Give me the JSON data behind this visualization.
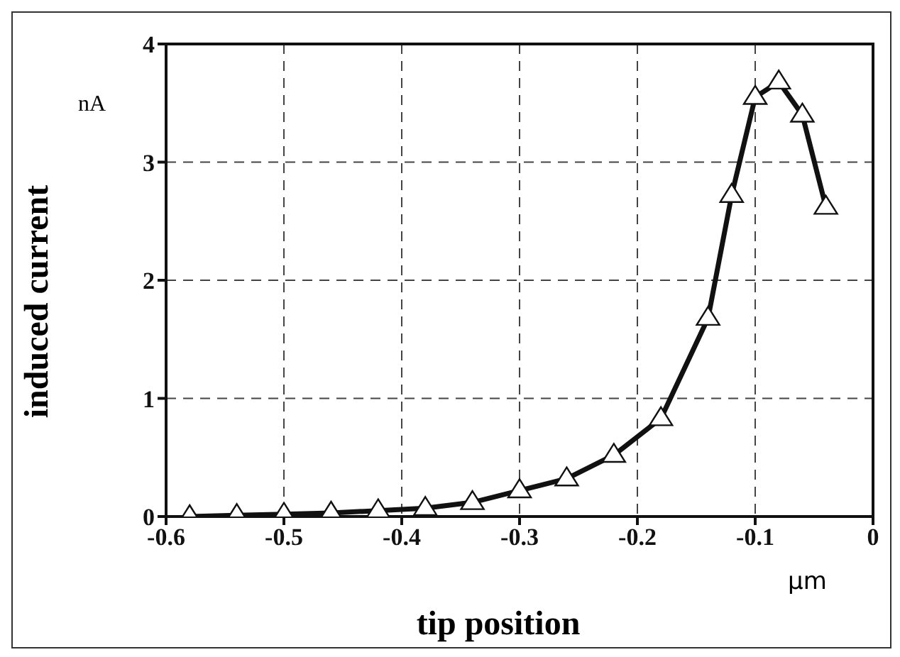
{
  "chart_data": {
    "type": "line",
    "xlabel": "tip position",
    "ylabel": "induced current",
    "annotations": [
      "nA",
      "µm"
    ],
    "x": [
      -0.58,
      -0.54,
      -0.5,
      -0.46,
      -0.42,
      -0.38,
      -0.34,
      -0.3,
      -0.26,
      -0.22,
      -0.18,
      -0.14,
      -0.12,
      -0.1,
      -0.08,
      -0.06,
      -0.04
    ],
    "series": [
      {
        "color": "#111111",
        "values": [
          0.0,
          0.01,
          0.02,
          0.03,
          0.05,
          0.07,
          0.12,
          0.22,
          0.32,
          0.52,
          0.83,
          1.68,
          2.72,
          3.55,
          3.68,
          3.4,
          2.62
        ]
      }
    ],
    "xlim": [
      -0.6,
      0
    ],
    "xticks": [
      -0.6,
      -0.5,
      -0.4,
      -0.3,
      -0.2,
      -0.1,
      0
    ],
    "ylim": [
      0,
      4
    ],
    "yticks": [
      0,
      1,
      2,
      3,
      4
    ],
    "grid": true,
    "marker": "triangle",
    "line_style": "solid"
  }
}
